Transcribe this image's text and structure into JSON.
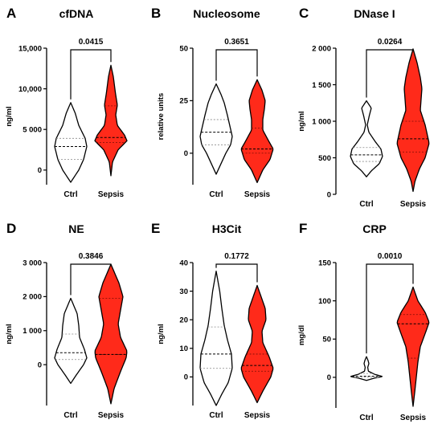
{
  "figure": {
    "colors": {
      "ctrl_fill": "#ffffff",
      "sepsis_fill": "#ff2a1a",
      "stroke": "#000000"
    }
  },
  "chart_data": [
    {
      "type": "violin",
      "panel": "A",
      "title": "cfDNA",
      "ylabel": "ng/ml",
      "ylim": [
        -1800,
        15000
      ],
      "yticks": [
        0,
        5000,
        10000,
        15000
      ],
      "ytick_labels": [
        "0",
        "5 000",
        "10,000",
        "15,000"
      ],
      "categories": [
        "Ctrl",
        "Sepsis"
      ],
      "pvalue": "0.0415",
      "series": [
        {
          "range": [
            -1500,
            8300
          ],
          "quartiles": [
            1300,
            2900,
            3900
          ],
          "widths": [
            [
              -1500,
              0
            ],
            [
              0,
              0.5
            ],
            [
              1300,
              0.8
            ],
            [
              2900,
              1
            ],
            [
              3900,
              0.9
            ],
            [
              5500,
              0.5
            ],
            [
              7000,
              0.28
            ],
            [
              8300,
              0
            ]
          ]
        },
        {
          "range": [
            -700,
            12900
          ],
          "quartiles": [
            3400,
            4000,
            7900
          ],
          "widths": [
            [
              -700,
              0
            ],
            [
              1000,
              0.1
            ],
            [
              2500,
              0.45
            ],
            [
              3600,
              1
            ],
            [
              4300,
              0.85
            ],
            [
              5500,
              0.4
            ],
            [
              6800,
              0.3
            ],
            [
              8000,
              0.4
            ],
            [
              9500,
              0.28
            ],
            [
              11500,
              0.15
            ],
            [
              12900,
              0
            ]
          ]
        }
      ]
    },
    {
      "type": "violin",
      "panel": "B",
      "title": "Nucleosome",
      "ylabel": "relative units",
      "ylim": [
        -15,
        50
      ],
      "yticks": [
        0,
        25,
        50
      ],
      "ytick_labels": [
        "0",
        "25",
        "50"
      ],
      "categories": [
        "Ctrl",
        "Sepsis"
      ],
      "pvalue": "0.3651",
      "series": [
        {
          "range": [
            -10,
            33
          ],
          "quartiles": [
            4,
            10,
            16
          ],
          "widths": [
            [
              -10,
              0
            ],
            [
              -5,
              0.3
            ],
            [
              0,
              0.6
            ],
            [
              4,
              0.9
            ],
            [
              8,
              1
            ],
            [
              13,
              0.85
            ],
            [
              18,
              0.7
            ],
            [
              24,
              0.5
            ],
            [
              28,
              0.3
            ],
            [
              33,
              0
            ]
          ]
        },
        {
          "range": [
            -14,
            35
          ],
          "quartiles": [
            0,
            2,
            12
          ],
          "widths": [
            [
              -14,
              0
            ],
            [
              -8,
              0.35
            ],
            [
              -3,
              0.8
            ],
            [
              2,
              1
            ],
            [
              6,
              0.7
            ],
            [
              11,
              0.35
            ],
            [
              16,
              0.35
            ],
            [
              21,
              0.45
            ],
            [
              25,
              0.5
            ],
            [
              30,
              0.3
            ],
            [
              35,
              0
            ]
          ]
        }
      ]
    },
    {
      "type": "violin",
      "panel": "C",
      "title": "DNase I",
      "ylabel": "ng/ml",
      "ylim": [
        0,
        2000
      ],
      "yticks": [
        0,
        500,
        1000,
        1500,
        2000
      ],
      "ytick_labels": [
        "0",
        "500",
        "1 000",
        "1 500",
        "2 000"
      ],
      "categories": [
        "Ctrl",
        "Sepsis"
      ],
      "pvalue": "0.0264",
      "series": [
        {
          "range": [
            240,
            1280
          ],
          "quartiles": [
            450,
            540,
            640
          ],
          "widths": [
            [
              240,
              0
            ],
            [
              320,
              0.3
            ],
            [
              420,
              0.8
            ],
            [
              520,
              1
            ],
            [
              620,
              0.9
            ],
            [
              720,
              0.55
            ],
            [
              850,
              0.15
            ],
            [
              950,
              0.05
            ],
            [
              1080,
              0.18
            ],
            [
              1180,
              0.3
            ],
            [
              1280,
              0
            ]
          ]
        },
        {
          "range": [
            40,
            1990
          ],
          "quartiles": [
            580,
            760,
            1000
          ],
          "widths": [
            [
              40,
              0
            ],
            [
              180,
              0.12
            ],
            [
              350,
              0.4
            ],
            [
              500,
              0.75
            ],
            [
              700,
              1
            ],
            [
              950,
              0.75
            ],
            [
              1150,
              0.45
            ],
            [
              1300,
              0.5
            ],
            [
              1450,
              0.55
            ],
            [
              1600,
              0.45
            ],
            [
              1800,
              0.25
            ],
            [
              1990,
              0
            ]
          ]
        }
      ]
    },
    {
      "type": "violin",
      "panel": "D",
      "title": "NE",
      "ylabel": "ng/ml",
      "ylim": [
        -1200,
        3000
      ],
      "yticks": [
        0,
        1000,
        2000,
        3000
      ],
      "ytick_labels": [
        "0",
        "1 000",
        "2 000",
        "3 000"
      ],
      "categories": [
        "Ctrl",
        "Sepsis"
      ],
      "pvalue": "0.3846",
      "series": [
        {
          "range": [
            -550,
            1950
          ],
          "quartiles": [
            150,
            350,
            900
          ],
          "widths": [
            [
              -550,
              0
            ],
            [
              -300,
              0.35
            ],
            [
              0,
              0.8
            ],
            [
              200,
              1
            ],
            [
              450,
              0.85
            ],
            [
              800,
              0.55
            ],
            [
              1150,
              0.5
            ],
            [
              1500,
              0.4
            ],
            [
              1950,
              0
            ]
          ]
        },
        {
          "range": [
            -1150,
            2950
          ],
          "quartiles": [
            300,
            300,
            1950
          ],
          "widths": [
            [
              -1150,
              0
            ],
            [
              -700,
              0.2
            ],
            [
              -200,
              0.6
            ],
            [
              200,
              0.95
            ],
            [
              400,
              1
            ],
            [
              800,
              0.6
            ],
            [
              1200,
              0.45
            ],
            [
              1600,
              0.6
            ],
            [
              2000,
              0.75
            ],
            [
              2400,
              0.5
            ],
            [
              2950,
              0
            ]
          ]
        }
      ]
    },
    {
      "type": "violin",
      "panel": "E",
      "title": "H3Cit",
      "ylabel": "ng/ml",
      "ylim": [
        -10,
        40
      ],
      "yticks": [
        0,
        10,
        20,
        30,
        40
      ],
      "ytick_labels": [
        "0",
        "10",
        "20",
        "30",
        "40"
      ],
      "categories": [
        "Ctrl",
        "Sepsis"
      ],
      "pvalue": "0.1772",
      "series": [
        {
          "range": [
            -10,
            37
          ],
          "quartiles": [
            3,
            8,
            17.5
          ],
          "widths": [
            [
              -10,
              0
            ],
            [
              -6,
              0.35
            ],
            [
              -2,
              0.75
            ],
            [
              3,
              1
            ],
            [
              8,
              0.95
            ],
            [
              13,
              0.7
            ],
            [
              18,
              0.5
            ],
            [
              24,
              0.35
            ],
            [
              30,
              0.22
            ],
            [
              37,
              0
            ]
          ]
        },
        {
          "range": [
            -9,
            32
          ],
          "quartiles": [
            2,
            4,
            8
          ],
          "widths": [
            [
              -9,
              0
            ],
            [
              -5,
              0.35
            ],
            [
              0,
              0.85
            ],
            [
              3,
              1
            ],
            [
              7,
              0.75
            ],
            [
              12,
              0.35
            ],
            [
              16,
              0.3
            ],
            [
              20,
              0.55
            ],
            [
              24,
              0.5
            ],
            [
              28,
              0.25
            ],
            [
              32,
              0
            ]
          ]
        }
      ]
    },
    {
      "type": "violin",
      "panel": "F",
      "title": "CRP",
      "ylabel": "mg/dl",
      "ylim": [
        -40,
        150
      ],
      "yticks": [
        0,
        50,
        100,
        150
      ],
      "ytick_labels": [
        "0",
        "50",
        "100",
        "150"
      ],
      "categories": [
        "Ctrl",
        "Sepsis"
      ],
      "pvalue": "0.0010",
      "series": [
        {
          "range": [
            -4,
            27
          ],
          "quartiles": [
            0,
            1.5,
            5
          ],
          "widths": [
            [
              -4,
              0
            ],
            [
              -1,
              0.5
            ],
            [
              1,
              1
            ],
            [
              4,
              0.5
            ],
            [
              8,
              0.12
            ],
            [
              13,
              0.08
            ],
            [
              18,
              0.15
            ],
            [
              22,
              0.1
            ],
            [
              27,
              0
            ]
          ]
        },
        {
          "range": [
            -38,
            118
          ],
          "quartiles": [
            25,
            70,
            82
          ],
          "widths": [
            [
              -38,
              0
            ],
            [
              -20,
              0.1
            ],
            [
              0,
              0.2
            ],
            [
              20,
              0.3
            ],
            [
              40,
              0.45
            ],
            [
              60,
              0.8
            ],
            [
              72,
              1
            ],
            [
              85,
              0.75
            ],
            [
              100,
              0.3
            ],
            [
              118,
              0
            ]
          ]
        }
      ]
    }
  ]
}
